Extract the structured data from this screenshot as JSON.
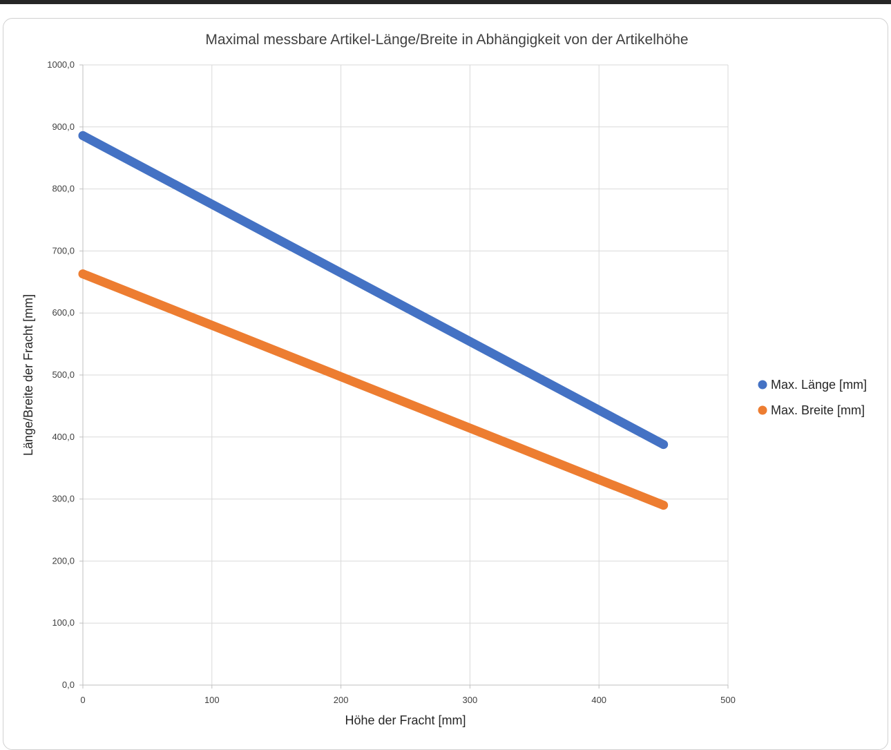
{
  "chart_data": {
    "type": "scatter",
    "title": "Maximal messbare Artikel-Länge/Breite in Abhängigkeit von der Artikelhöhe",
    "xlabel": "Höhe der Fracht [mm]",
    "ylabel": "Länge/Breite der Fracht [mm]",
    "xlim": [
      0,
      500
    ],
    "ylim": [
      0,
      1000
    ],
    "x_ticks": [
      0,
      100,
      200,
      300,
      400,
      500
    ],
    "x_tick_labels": [
      "0",
      "100",
      "200",
      "300",
      "400",
      "500"
    ],
    "y_ticks": [
      0,
      100,
      200,
      300,
      400,
      500,
      600,
      700,
      800,
      900,
      1000
    ],
    "y_tick_labels": [
      "0,0",
      "100,0",
      "200,0",
      "300,0",
      "400,0",
      "500,0",
      "600,0",
      "700,0",
      "800,0",
      "900,0",
      "1000,0"
    ],
    "grid": true,
    "legend_position": "right",
    "series": [
      {
        "name": "Max. Länge [mm]",
        "color": "#4472c4",
        "x": [
          0,
          450
        ],
        "y": [
          886,
          388
        ]
      },
      {
        "name": "Max. Breite [mm]",
        "color": "#ed7d31",
        "x": [
          0,
          450
        ],
        "y": [
          663,
          290
        ]
      }
    ]
  }
}
